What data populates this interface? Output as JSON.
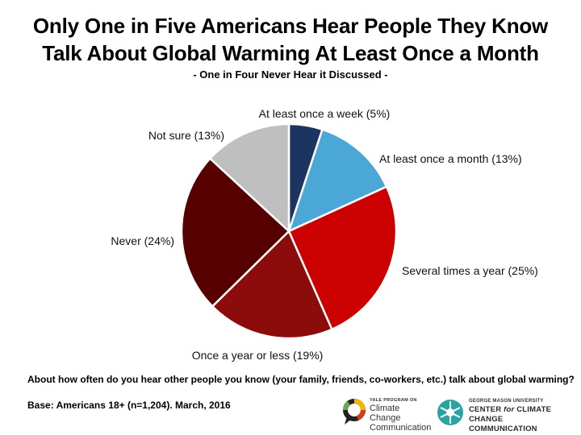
{
  "title_line1": "Only One in Five Americans Hear People They Know",
  "title_line2": "Talk About Global Warming At Least Once a Month",
  "subtitle": "- One in Four Never Hear it Discussed -",
  "question": "About how often do you hear other people you know (your family, friends, co-workers, etc.) talk about global warming?",
  "base": "Base: Americans 18+ (n=1,204). March, 2016",
  "logos": {
    "yale_small": "YALE PROGRAM ON",
    "yale_line1": "Climate Change",
    "yale_line2": "Communication",
    "gmu_small": "GEORGE MASON UNIVERSITY",
    "gmu_line1_a": "CENTER ",
    "gmu_line1_b": "for",
    "gmu_line1_c": " CLIMATE CHANGE",
    "gmu_line2": "COMMUNICATION"
  },
  "chart_data": {
    "type": "pie",
    "title": "Only One in Five Americans Hear People They Know Talk About Global Warming At Least Once a Month",
    "subtitle": "- One in Four Never Hear it Discussed -",
    "unit": "%",
    "slices": [
      {
        "label": "At least once a week (5%)",
        "value": 5,
        "color": "#1c3560"
      },
      {
        "label": "At least once a month (13%)",
        "value": 13,
        "color": "#4ba7d6"
      },
      {
        "label": "Several times a year (25%)",
        "value": 25,
        "color": "#cc0000"
      },
      {
        "label": "Once a year or less (19%)",
        "value": 19,
        "color": "#8c0b0b"
      },
      {
        "label": "Never (24%)",
        "value": 24,
        "color": "#560000"
      },
      {
        "label": "Not sure (13%)",
        "value": 13,
        "color": "#bfbfbf"
      }
    ]
  }
}
